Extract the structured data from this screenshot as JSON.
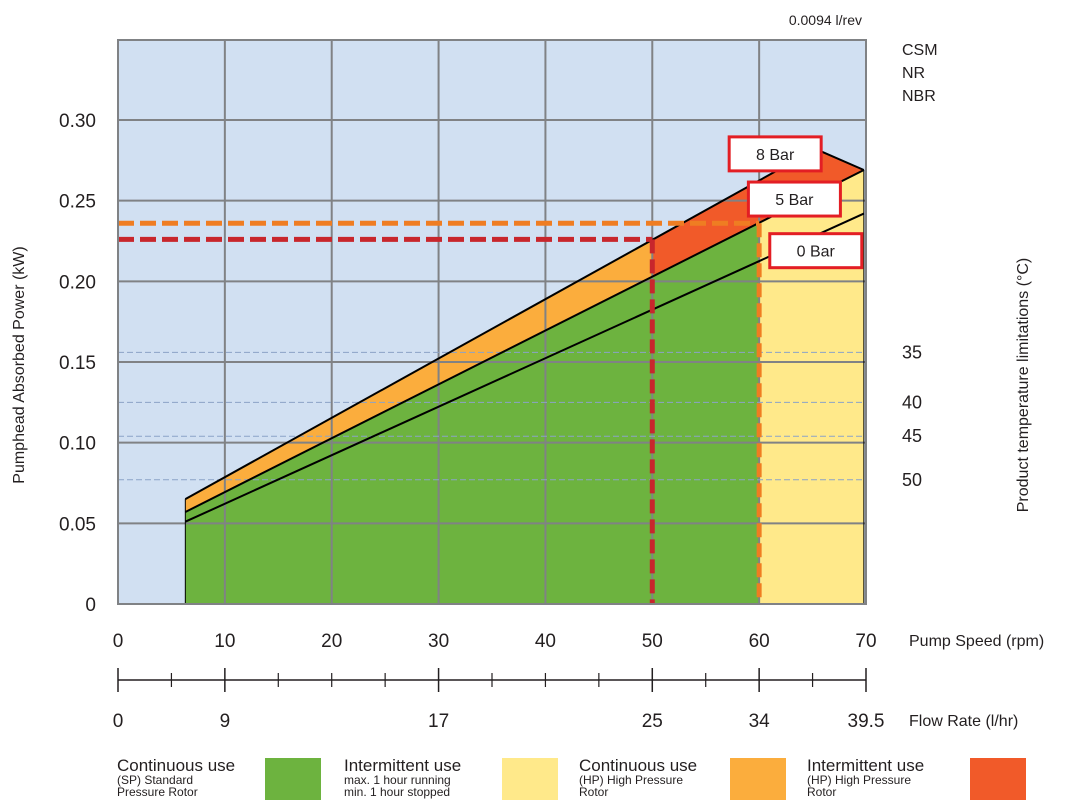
{
  "chart_data": {
    "type": "area",
    "ylabel": "Pumphead Absorbed Power (kW)",
    "ylim": [
      0,
      0.3
    ],
    "yticks": [
      "0",
      "0.05",
      "0.10",
      "0.15",
      "0.20",
      "0.25",
      "0.30"
    ],
    "ytick_values": [
      0,
      0.05,
      0.1,
      0.15,
      0.2,
      0.25,
      0.3
    ],
    "x_axis_label": "Pump Speed (rpm)",
    "xlim": [
      0,
      70
    ],
    "xticks": [
      "0",
      "10",
      "20",
      "30",
      "40",
      "50",
      "60",
      "70"
    ],
    "xtick_values": [
      0,
      10,
      20,
      30,
      40,
      50,
      60,
      70
    ],
    "flow_axis_label": "Flow Rate (l/hr)",
    "flow_ticks": [
      "0",
      "9",
      "17",
      "25",
      "34",
      "39.5"
    ],
    "flow_tick_rpm": [
      0,
      10,
      30,
      50,
      60,
      70
    ],
    "flow_minor_tick_rpm": [
      5,
      15,
      20,
      25,
      35,
      40,
      45,
      55,
      65
    ],
    "grid": true,
    "top_label": "0.0094 l/rev",
    "materials": [
      "CSM",
      "NR",
      "NBR"
    ],
    "right_axis_label": "Product temperature limitations (°C)",
    "temperature_limits": [
      {
        "label": "35",
        "power": 0.156
      },
      {
        "label": "40",
        "power": 0.125
      },
      {
        "label": "45",
        "power": 0.104
      },
      {
        "label": "50",
        "power": 0.077
      }
    ],
    "series": [
      {
        "name": "0 Bar",
        "x": [
          6.3,
          69.8
        ],
        "y": [
          0.051,
          0.242
        ]
      },
      {
        "name": "5 Bar",
        "x": [
          6.3,
          69.8
        ],
        "y": [
          0.057,
          0.269
        ]
      },
      {
        "name": "8 Bar",
        "x": [
          6.3,
          65.3
        ],
        "y": [
          0.065,
          0.282
        ]
      }
    ],
    "hp_boundary_x": [
      65.3,
      69.8
    ],
    "hp_boundary_y": [
      0.282,
      0.269
    ],
    "pressure_labels": [
      {
        "label": "8 Bar",
        "x": 61.5,
        "y": 0.279
      },
      {
        "label": "5 Bar",
        "x": 63.3,
        "y": 0.251
      },
      {
        "label": "0 Bar",
        "x": 65.3,
        "y": 0.219
      }
    ],
    "operating_limits": [
      {
        "rpm": 50,
        "power": 0.226,
        "color": "#c8262c"
      },
      {
        "rpm": 60,
        "power": 0.236,
        "color": "#ef7d22"
      }
    ],
    "area_colors": {
      "sp_continuous": "#6db33f",
      "hp_continuous": "#ffe98a",
      "sp_intermittent": "#fbad3d",
      "hp_intermittent": "#f15a29",
      "background": "#d1e0f2"
    }
  },
  "legend": [
    {
      "title": "Continuous use",
      "sub1": "(SP) Standard",
      "sub2": "Pressure Rotor",
      "color": "#6db33f"
    },
    {
      "title": "Intermittent use",
      "sub1": "max. 1 hour running",
      "sub2": "min. 1 hour stopped",
      "color": "#ffe98a"
    },
    {
      "title": "Continuous use",
      "sub1": "(HP) High Pressure",
      "sub2": "Rotor",
      "color": "#fbad3d"
    },
    {
      "title": "Intermittent use",
      "sub1": "(HP) High Pressure",
      "sub2": "Rotor",
      "color": "#f15a29"
    }
  ]
}
